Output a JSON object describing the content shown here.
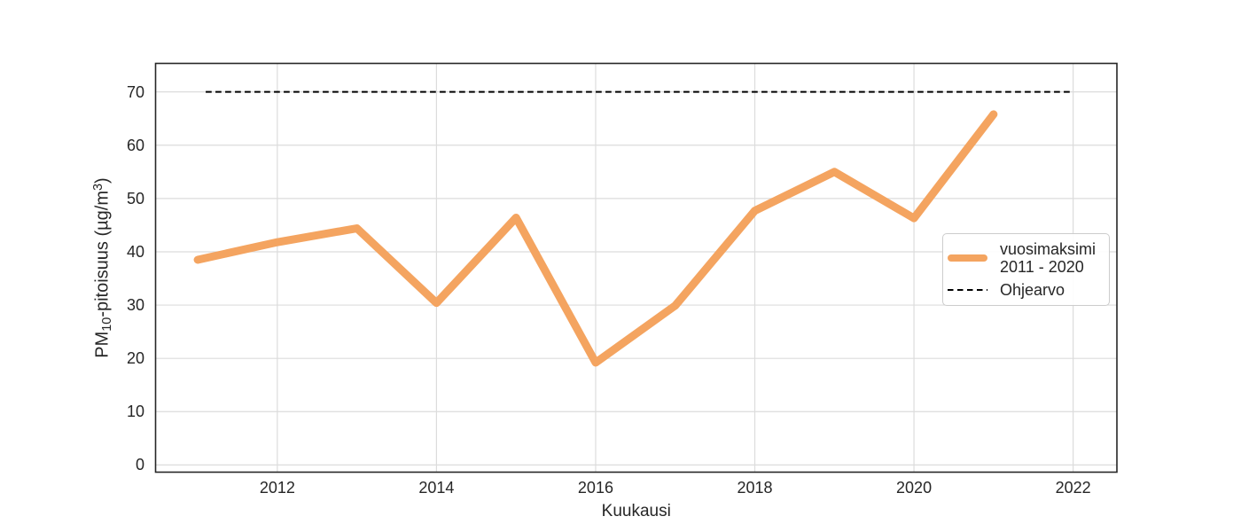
{
  "figure": {
    "xlabel": "Kuukausi",
    "ylabel": {
      "prefix": "PM",
      "sub": "10",
      "mid": "-pitoisuus (µg/m",
      "sup": "3",
      "suffix": ")"
    },
    "legend": {
      "items": [
        {
          "swatch": "solid-orange-line",
          "label_line1": "vuosimaksimi",
          "label_line2": "2011 - 2020"
        },
        {
          "swatch": "dashed-black-line",
          "label": "Ohjearvo"
        }
      ]
    }
  },
  "chart_data": {
    "type": "line",
    "title": "",
    "xlabel": "Kuukausi",
    "ylabel": "PM10-pitoisuus (µg/m3)",
    "x": [
      2011,
      2012,
      2013,
      2014,
      2015,
      2016,
      2017,
      2018,
      2019,
      2020,
      2021
    ],
    "series": [
      {
        "name": "vuosimaksimi 2011 - 2020",
        "color": "#F4A460",
        "linewidth": 9,
        "values": [
          38.5,
          41.8,
          44.4,
          30.4,
          46.4,
          19.2,
          29.9,
          47.7,
          55.0,
          46.3,
          65.8
        ]
      }
    ],
    "reference_line": {
      "name": "Ohjearvo",
      "value": 70,
      "style": "dashed",
      "color": "#000000",
      "x_start": 2011.1,
      "x_end": 2022
    },
    "xticks": [
      2012,
      2014,
      2016,
      2018,
      2020,
      2022
    ],
    "yticks": [
      0,
      10,
      20,
      30,
      40,
      50,
      60,
      70
    ],
    "xlim": [
      2010.47,
      2022.55
    ],
    "ylim": [
      -1.35,
      75.35
    ],
    "grid": true,
    "legend_position": "center right"
  },
  "colors": {
    "grid": "#dcdcdc",
    "spine": "#262626",
    "text": "#262626",
    "line_orange": "#F4A460",
    "reference_black": "#000000",
    "legend_border": "#cccccc",
    "background": "#ffffff"
  }
}
